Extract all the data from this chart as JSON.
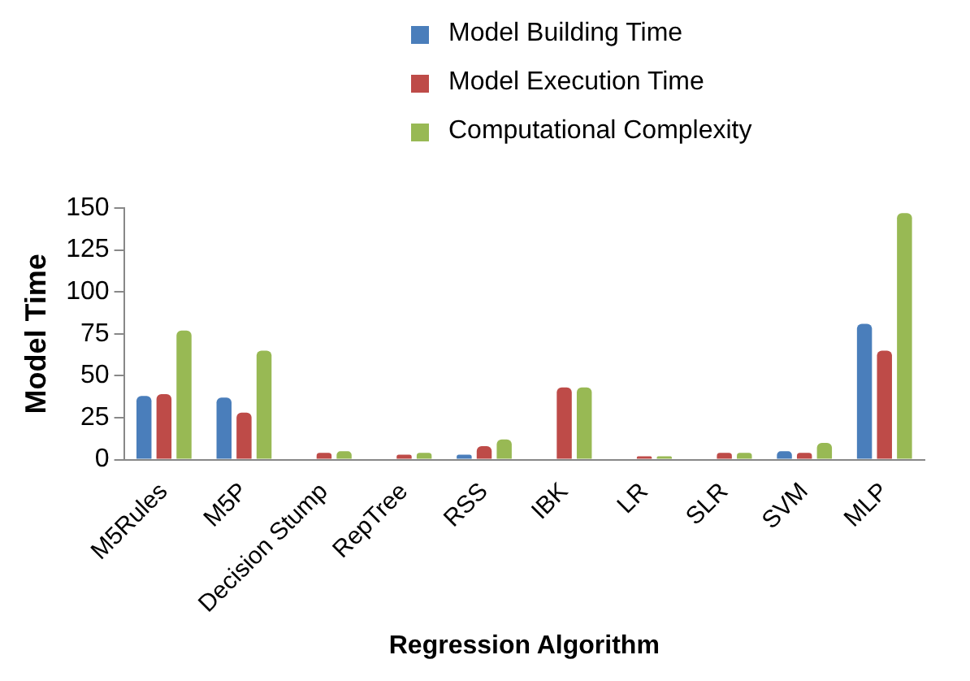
{
  "chart_data": {
    "type": "bar",
    "xlabel": "Regression Algorithm",
    "ylabel": "Model Time",
    "categories": [
      "M5Rules",
      "M5P",
      "Decision Stump",
      "RepTree",
      "RSS",
      "IBK",
      "LR",
      "SLR",
      "SVM",
      "MLP"
    ],
    "series": [
      {
        "name": "Model Building Time",
        "color": "#4a7ebb",
        "values": [
          38,
          37,
          0.5,
          0.5,
          3,
          0.5,
          0.5,
          0.5,
          5,
          81
        ]
      },
      {
        "name": "Model Execution Time",
        "color": "#be4b48",
        "values": [
          39,
          28,
          4,
          3,
          8,
          43,
          2,
          4,
          4,
          65
        ]
      },
      {
        "name": "Computational Complexity",
        "color": "#98b954",
        "values": [
          77,
          65,
          5,
          4,
          12,
          43,
          2,
          4,
          10,
          147
        ]
      }
    ],
    "ylim": [
      0,
      150
    ],
    "yticks": [
      0,
      25,
      50,
      75,
      100,
      125,
      150
    ],
    "grid": false,
    "legend": "top"
  }
}
